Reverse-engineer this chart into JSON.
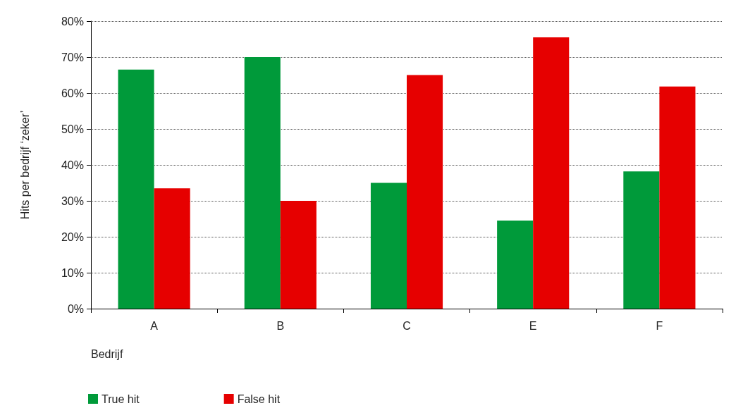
{
  "chart_data": {
    "type": "bar",
    "xlabel": "Bedrijf",
    "ylabel": "Hits per bedrijf ‘zeker’",
    "categories": [
      "A",
      "B",
      "C",
      "E",
      "F"
    ],
    "series": [
      {
        "name": "True hit",
        "color": "#009a3a",
        "values": [
          66.5,
          70,
          35,
          24.5,
          38.2
        ]
      },
      {
        "name": "False hit",
        "color": "#e60000",
        "values": [
          33.5,
          30,
          65,
          75.5,
          61.8
        ]
      }
    ],
    "ylim": [
      0,
      80
    ],
    "yticks": [
      {
        "value": 0,
        "label": "0%"
      },
      {
        "value": 10,
        "label": "10%"
      },
      {
        "value": 20,
        "label": "20%"
      },
      {
        "value": 30,
        "label": "30%"
      },
      {
        "value": 40,
        "label": "40%"
      },
      {
        "value": 50,
        "label": "50%"
      },
      {
        "value": 60,
        "label": "60%"
      },
      {
        "value": 70,
        "label": "70%"
      },
      {
        "value": 80,
        "label": "80%"
      }
    ],
    "grid": "y",
    "legend": "bottom left"
  }
}
